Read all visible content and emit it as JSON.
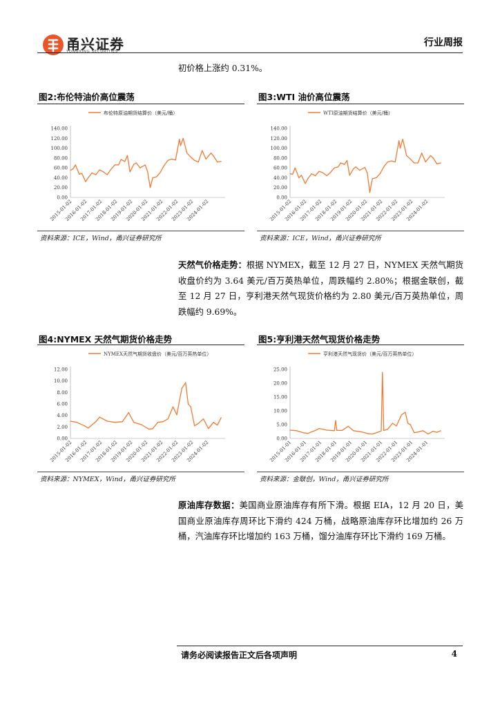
{
  "header": {
    "brand_name": "甬兴证券",
    "brand_sub": "YONGXING SECURITIES",
    "report_type": "行业周报"
  },
  "intro_text": "初价格上涨约 0.31%。",
  "para_gas": {
    "lead": "天然气价格走势：",
    "text": "根据 NYMEX，截至 12 月 27 日，NYMEX 天然气期货收盘价约为 3.64 美元/百万英热单位，周跌幅约 2.80%；根据金联创，截至 12 月 27 日，亨利港天然气现货价格约为 2.80 美元/百万英热单位，周跌幅约 9.69%。"
  },
  "para_inventory": {
    "lead": "原油库存数据：",
    "text": "美国商业原油库存有所下滑。根据 EIA，12 月 20 日，美国商业原油库存周环比下滑约 424 万桶，战略原油库存环比增加约 26 万桶，汽油库存环比增加约 163 万桶，馏分油库存环比下滑约 169 万桶。"
  },
  "footer": {
    "note": "请务必阅读报告正文后各项声明",
    "page": "4"
  },
  "line_color": "#f07a33",
  "figures": [
    {
      "title": "图2:布伦特油价高位震荡",
      "source": "资料来源：ICE，Wind，甬兴证券研究所"
    },
    {
      "title": "图3:WTI 油价高位震荡",
      "source": "资料来源：ICE，Wind，甬兴证券研究所"
    },
    {
      "title": "图4:NYMEX 天然气期货价格走势",
      "source": "资料来源：NYMEX，Wind，甬兴证券研究所"
    },
    {
      "title": "图5:亨利港天然气现货价格走势",
      "source": "资料来源：金联创，Wind，甬兴证券研究所"
    }
  ],
  "chart_data": [
    {
      "type": "line",
      "series": [
        {
          "name": "布伦特原油期货结算价（美元/桶）",
          "x": [
            "2015-01",
            "2015-03",
            "2015-05",
            "2015-08",
            "2015-10",
            "2016-01",
            "2016-03",
            "2016-06",
            "2016-09",
            "2016-12",
            "2017-03",
            "2017-06",
            "2017-09",
            "2017-12",
            "2018-03",
            "2018-05",
            "2018-08",
            "2018-10",
            "2018-12",
            "2019-03",
            "2019-05",
            "2019-08",
            "2019-12",
            "2020-02",
            "2020-04",
            "2020-06",
            "2020-09",
            "2020-12",
            "2021-03",
            "2021-06",
            "2021-09",
            "2021-12",
            "2022-03",
            "2022-04",
            "2022-06",
            "2022-09",
            "2022-12",
            "2023-03",
            "2023-06",
            "2023-09",
            "2023-12",
            "2024-04",
            "2024-06",
            "2024-09",
            "2024-12"
          ],
          "values": [
            55,
            58,
            66,
            47,
            49,
            32,
            40,
            50,
            46,
            56,
            52,
            46,
            57,
            66,
            66,
            77,
            73,
            85,
            52,
            67,
            70,
            60,
            66,
            52,
            20,
            40,
            42,
            51,
            65,
            75,
            78,
            76,
            118,
            105,
            120,
            90,
            82,
            75,
            72,
            95,
            78,
            90,
            84,
            72,
            73
          ]
        }
      ],
      "xticks": [
        "2015-01-02",
        "2016-01-02",
        "2017-01-02",
        "2018-01-02",
        "2019-01-02",
        "2020-01-02",
        "2021-01-02",
        "2022-01-02",
        "2023-01-02",
        "2024-01-02"
      ],
      "yticks": [
        "0.00",
        "20.00",
        "40.00",
        "60.00",
        "80.00",
        "100.00",
        "120.00",
        "140.00"
      ],
      "ylim": [
        0,
        140
      ]
    },
    {
      "type": "line",
      "series": [
        {
          "name": "WTI原油期货结算价（美元/桶）",
          "x": [
            "2015-01",
            "2015-03",
            "2015-05",
            "2015-08",
            "2015-10",
            "2016-01",
            "2016-03",
            "2016-06",
            "2016-09",
            "2016-12",
            "2017-03",
            "2017-06",
            "2017-09",
            "2017-12",
            "2018-03",
            "2018-05",
            "2018-08",
            "2018-10",
            "2018-12",
            "2019-03",
            "2019-05",
            "2019-08",
            "2019-12",
            "2020-02",
            "2020-04",
            "2020-06",
            "2020-09",
            "2020-12",
            "2021-03",
            "2021-06",
            "2021-09",
            "2021-12",
            "2022-03",
            "2022-04",
            "2022-06",
            "2022-09",
            "2022-12",
            "2023-03",
            "2023-06",
            "2023-09",
            "2023-12",
            "2024-04",
            "2024-06",
            "2024-09",
            "2024-12"
          ],
          "values": [
            48,
            47,
            60,
            40,
            45,
            28,
            38,
            48,
            44,
            53,
            50,
            44,
            51,
            60,
            62,
            70,
            67,
            75,
            45,
            58,
            62,
            55,
            61,
            50,
            10,
            38,
            40,
            48,
            62,
            72,
            74,
            72,
            115,
            100,
            118,
            85,
            78,
            70,
            70,
            90,
            72,
            85,
            80,
            68,
            70
          ]
        }
      ],
      "xticks": [
        "2015-01-02",
        "2016-01-02",
        "2017-01-02",
        "2018-01-02",
        "2019-01-02",
        "2020-01-02",
        "2021-01-02",
        "2022-01-02",
        "2023-01-02",
        "2024-01-02"
      ],
      "yticks": [
        "0.00",
        "20.00",
        "40.00",
        "60.00",
        "80.00",
        "100.00",
        "120.00",
        "140.00"
      ],
      "ylim": [
        0,
        140
      ]
    },
    {
      "type": "line",
      "series": [
        {
          "name": "NYMEX天然气期货收盘价（美元/百万英热单位）",
          "x": [
            "2015-01",
            "2015-06",
            "2015-12",
            "2016-03",
            "2016-09",
            "2016-12",
            "2017-06",
            "2017-12",
            "2018-06",
            "2018-11",
            "2019-03",
            "2019-09",
            "2020-03",
            "2020-06",
            "2020-10",
            "2021-02",
            "2021-06",
            "2021-10",
            "2022-01",
            "2022-05",
            "2022-08",
            "2022-10",
            "2022-12",
            "2023-03",
            "2023-06",
            "2023-10",
            "2024-02",
            "2024-06",
            "2024-09",
            "2024-12"
          ],
          "values": [
            3.0,
            2.8,
            2.2,
            1.8,
            2.9,
            3.7,
            3.0,
            2.8,
            2.9,
            4.5,
            2.8,
            2.4,
            1.6,
            1.7,
            2.8,
            2.9,
            3.4,
            5.5,
            4.1,
            8.7,
            9.7,
            6.0,
            5.5,
            2.2,
            2.6,
            3.4,
            1.7,
            2.8,
            2.3,
            3.6
          ]
        }
      ],
      "xticks": [
        "2015-01-02",
        "2016-01-02",
        "2017-01-02",
        "2018-01-02",
        "2019-01-02",
        "2020-01-02",
        "2021-01-02",
        "2022-01-02",
        "2023-01-02",
        "2024-01-02"
      ],
      "yticks": [
        "0.00",
        "2.00",
        "4.00",
        "6.00",
        "8.00",
        "10.00",
        "12.00"
      ],
      "ylim": [
        0,
        12
      ]
    },
    {
      "type": "line",
      "series": [
        {
          "name": "亨利港天然气现货价（美元/百万英热单位）",
          "x": [
            "2015-01",
            "2015-06",
            "2015-12",
            "2016-03",
            "2016-09",
            "2016-12",
            "2017-06",
            "2017-12",
            "2018-01",
            "2018-02",
            "2018-06",
            "2018-11",
            "2019-03",
            "2019-09",
            "2020-03",
            "2020-06",
            "2020-10",
            "2021-01",
            "2021-02",
            "2021-03",
            "2021-06",
            "2021-10",
            "2022-01",
            "2022-05",
            "2022-08",
            "2022-10",
            "2022-12",
            "2023-03",
            "2023-06",
            "2023-10",
            "2024-02",
            "2024-06",
            "2024-09",
            "2024-12"
          ],
          "values": [
            3.0,
            2.8,
            2.0,
            1.8,
            2.9,
            3.6,
            3.0,
            2.8,
            6.5,
            2.9,
            2.9,
            4.4,
            2.8,
            2.4,
            1.7,
            1.6,
            2.2,
            2.7,
            23.9,
            2.9,
            3.3,
            5.5,
            4.5,
            8.5,
            9.5,
            5.5,
            5.0,
            2.1,
            2.3,
            2.8,
            1.6,
            2.6,
            2.2,
            2.8
          ]
        }
      ],
      "xticks": [
        "2015-01-01",
        "2016-01-01",
        "2017-01-01",
        "2018-01-01",
        "2019-01-01",
        "2020-01-01",
        "2021-01-01",
        "2022-01-01",
        "2023-01-01",
        "2024-01-01"
      ],
      "yticks": [
        "0.00",
        "5.00",
        "10.00",
        "15.00",
        "20.00",
        "25.00"
      ],
      "ylim": [
        0,
        25
      ]
    }
  ]
}
